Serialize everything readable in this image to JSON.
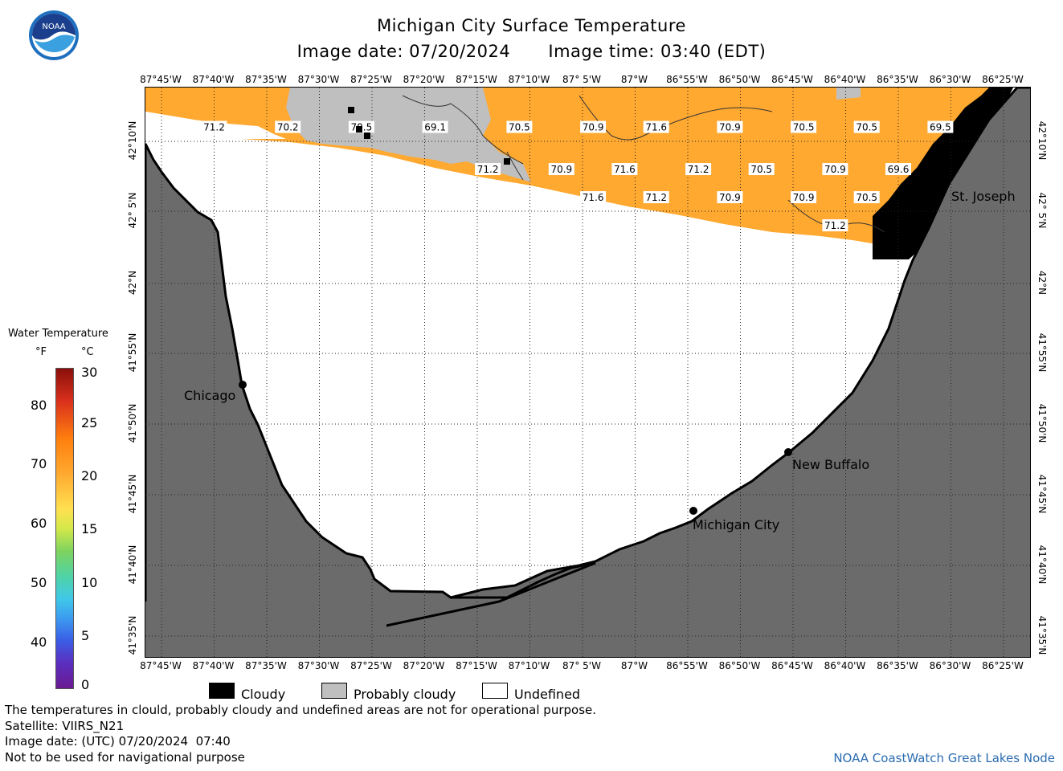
{
  "header": {
    "title": "Michigan City Surface Temperature",
    "image_date": "Image date: 07/20/2024",
    "image_time": "Image time: 03:40 (EDT)"
  },
  "logo": {
    "text": "NOAA",
    "name": "noaa-logo"
  },
  "longitude_labels": [
    "87°45'W",
    "87°40'W",
    "87°35'W",
    "87°30'W",
    "87°25'W",
    "87°20'W",
    "87°15'W",
    "87°10'W",
    "87° 5'W",
    "87°W",
    "86°55'W",
    "86°50'W",
    "86°45'W",
    "86°40'W",
    "86°35'W",
    "86°30'W",
    "86°25'W"
  ],
  "latitude_labels": [
    "42°10'N",
    "42° 5'N",
    "42°N",
    "41°55'N",
    "41°50'N",
    "41°45'N",
    "41°40'N",
    "41°35'N"
  ],
  "temperature_labels": [
    {
      "label": "71.2",
      "lon": "87°40'W",
      "lat": "42°11'N"
    },
    {
      "label": "70.2",
      "lon": "87°33'W",
      "lat": "42°11'N"
    },
    {
      "label": "70.5",
      "lon": "87°26'W",
      "lat": "42°11'N"
    },
    {
      "label": "69.1",
      "lon": "87°19'W",
      "lat": "42°11'N"
    },
    {
      "label": "70.5",
      "lon": "87°11'W",
      "lat": "42°11'N"
    },
    {
      "label": "70.9",
      "lon": "87°4'W",
      "lat": "42°11'N"
    },
    {
      "label": "71.6",
      "lon": "86°58'W",
      "lat": "42°11'N"
    },
    {
      "label": "70.9",
      "lon": "86°51'W",
      "lat": "42°11'N"
    },
    {
      "label": "70.5",
      "lon": "86°44'W",
      "lat": "42°11'N"
    },
    {
      "label": "70.5",
      "lon": "86°38'W",
      "lat": "42°11'N"
    },
    {
      "label": "69.5",
      "lon": "86°31'W",
      "lat": "42°11'N"
    },
    {
      "label": "71.2",
      "lon": "87°14'W",
      "lat": "42°8'N"
    },
    {
      "label": "70.9",
      "lon": "87°7'W",
      "lat": "42°8'N"
    },
    {
      "label": "71.6",
      "lon": "87°1'W",
      "lat": "42°8'N"
    },
    {
      "label": "71.2",
      "lon": "86°54'W",
      "lat": "42°8'N"
    },
    {
      "label": "70.5",
      "lon": "86°48'W",
      "lat": "42°8'N"
    },
    {
      "label": "70.9",
      "lon": "86°41'W",
      "lat": "42°8'N"
    },
    {
      "label": "69.6",
      "lon": "86°35'W",
      "lat": "42°8'N"
    },
    {
      "label": "71.6",
      "lon": "87°4'W",
      "lat": "42°6'N"
    },
    {
      "label": "71.2",
      "lon": "86°58'W",
      "lat": "42°6'N"
    },
    {
      "label": "70.9",
      "lon": "86°51'W",
      "lat": "42°6'N"
    },
    {
      "label": "70.9",
      "lon": "86°44'W",
      "lat": "42°6'N"
    },
    {
      "label": "70.5",
      "lon": "86°38'W",
      "lat": "42°6'N"
    },
    {
      "label": "71.2",
      "lon": "86°41'W",
      "lat": "42°4'N"
    }
  ],
  "cities": [
    "Chicago",
    "Michigan City",
    "New Buffalo",
    "St. Joseph"
  ],
  "colorbar": {
    "title": "Water Temperature",
    "unit_f": "°F",
    "unit_c": "°C",
    "f_ticks": [
      "80",
      "70",
      "60",
      "50",
      "40"
    ],
    "c_ticks": [
      "30",
      "25",
      "20",
      "15",
      "10",
      "5",
      "0"
    ]
  },
  "legend": {
    "cloudy": "Cloudy",
    "probably_cloudy": "Probably cloudy",
    "undefined": "Undefined"
  },
  "footer": {
    "line1": "The temperatures in clould, probably cloudy and undefined areas are not for operational purpose.",
    "line2": "Satellite: VIIRS_N21",
    "line3": "Image date: (UTC) 07/20/2024  07:40",
    "line4": "Not to be used for navigational purpose",
    "credit": "NOAA CoastWatch Great Lakes Node"
  },
  "colors": {
    "land": "#6b6b6b",
    "water_temp": "#ffa931",
    "probably_cloudy": "#bfbfbf",
    "cloudy": "#000000",
    "undefined": "#ffffff"
  }
}
